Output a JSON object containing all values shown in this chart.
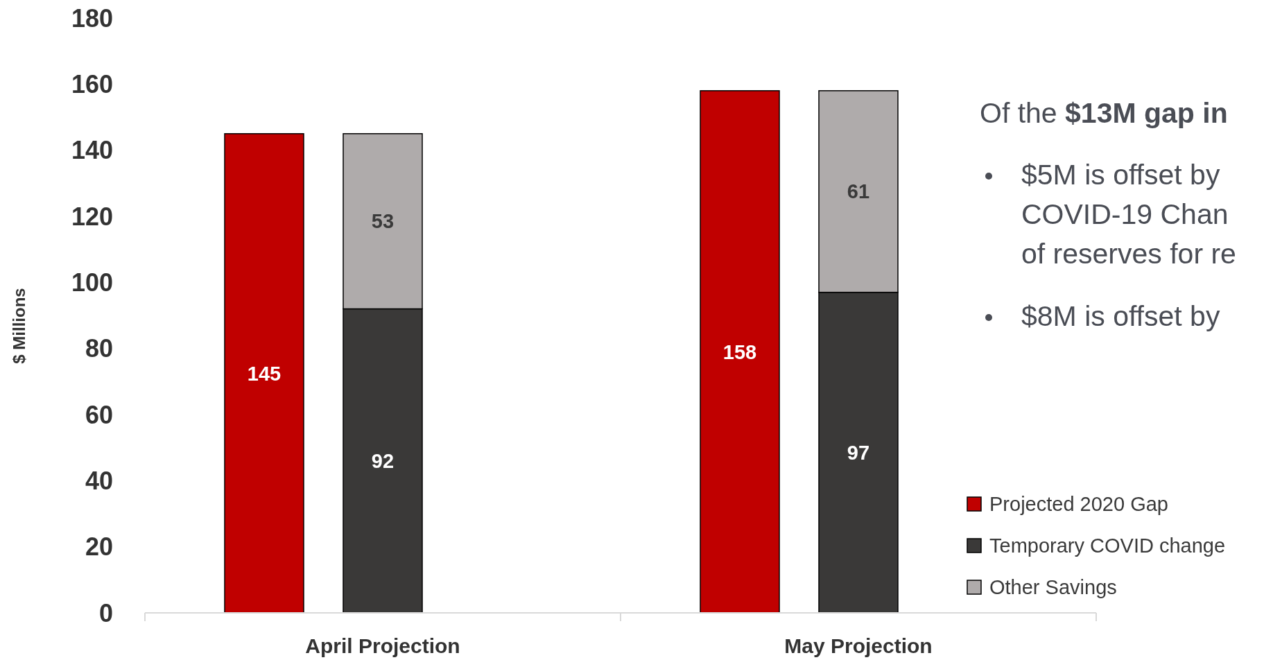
{
  "chart_data": {
    "type": "bar",
    "ylabel": "$ Millions",
    "categories": [
      null,
      "April Projection",
      null,
      "May Projection"
    ],
    "stacked": true,
    "series": [
      {
        "name": "Projected 2020 Gap",
        "color": "#c00000",
        "values": [
          145,
          null,
          158,
          null
        ]
      },
      {
        "name": "Temporary COVID change",
        "color": "#3a3938",
        "values": [
          null,
          92,
          null,
          97
        ]
      },
      {
        "name": "Other Savings",
        "color": "#afabab",
        "values": [
          null,
          53,
          null,
          61
        ]
      }
    ],
    "ylim": [
      0,
      180
    ],
    "yticks": [
      0,
      20,
      40,
      60,
      80,
      100,
      120,
      140,
      160,
      180
    ],
    "data_labels": true,
    "legend": "bottom right",
    "grid": false,
    "annotations": [
      "Of the",
      "$13M gap in",
      "$5M is offset by",
      "COVID-19 Chan",
      "of reserves for re",
      "$8M is offset by"
    ]
  }
}
